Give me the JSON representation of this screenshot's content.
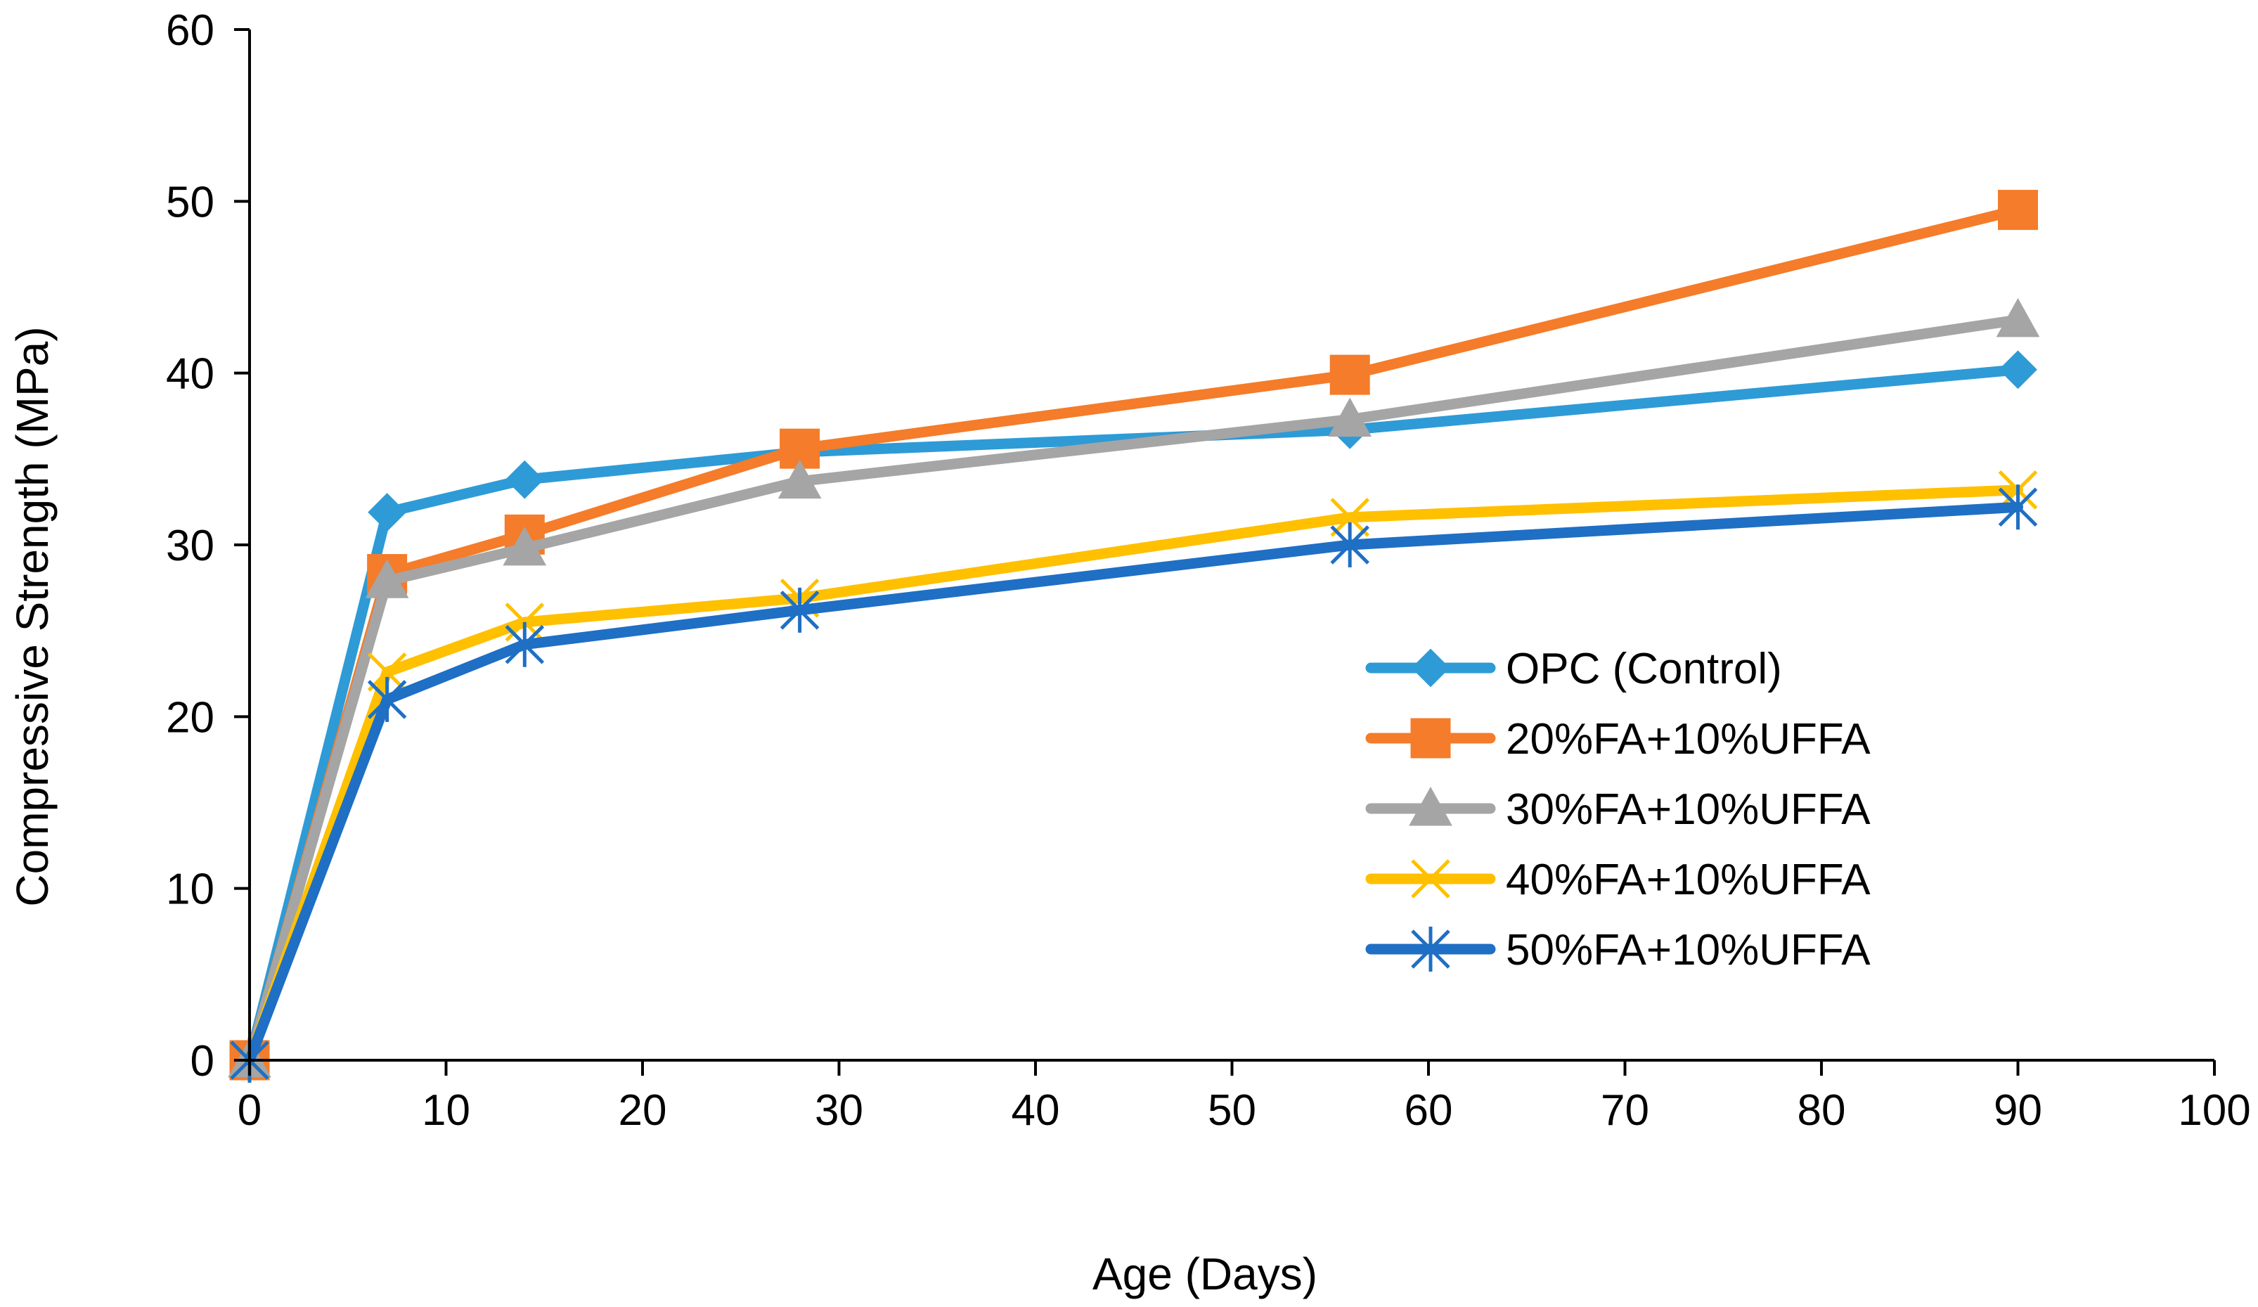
{
  "chart_data": {
    "type": "line",
    "title": "",
    "xlabel": "Age (Days)",
    "ylabel": "Compressive Strength (MPa)",
    "xlim": [
      0,
      100
    ],
    "ylim": [
      0,
      60
    ],
    "xticks": [
      0,
      10,
      20,
      30,
      40,
      50,
      60,
      70,
      80,
      90,
      100
    ],
    "yticks": [
      0,
      10,
      20,
      30,
      40,
      50,
      60
    ],
    "grid": false,
    "legend_position": "right",
    "x": [
      0,
      7,
      14,
      28,
      56,
      90
    ],
    "series": [
      {
        "name": "OPC (Control)",
        "color": "#2E9BD6",
        "marker": "diamond",
        "values": [
          0,
          31.9,
          33.8,
          35.4,
          36.7,
          40.2
        ]
      },
      {
        "name": "20%FA+10%UFFA",
        "color": "#F47C2A",
        "marker": "square",
        "values": [
          0,
          28.3,
          30.6,
          35.6,
          39.9,
          49.5
        ]
      },
      {
        "name": "30%FA+10%UFFA",
        "color": "#A5A5A5",
        "marker": "triangle",
        "values": [
          0,
          27.9,
          29.8,
          33.7,
          37.3,
          43.1
        ]
      },
      {
        "name": "40%FA+10%UFFA",
        "color": "#FFC000",
        "marker": "x",
        "values": [
          0,
          22.6,
          25.5,
          26.9,
          31.6,
          33.2
        ]
      },
      {
        "name": "50%FA+10%UFFA",
        "color": "#1F6FC4",
        "marker": "star",
        "values": [
          0,
          21.0,
          24.2,
          26.2,
          30.0,
          32.2
        ]
      }
    ]
  }
}
